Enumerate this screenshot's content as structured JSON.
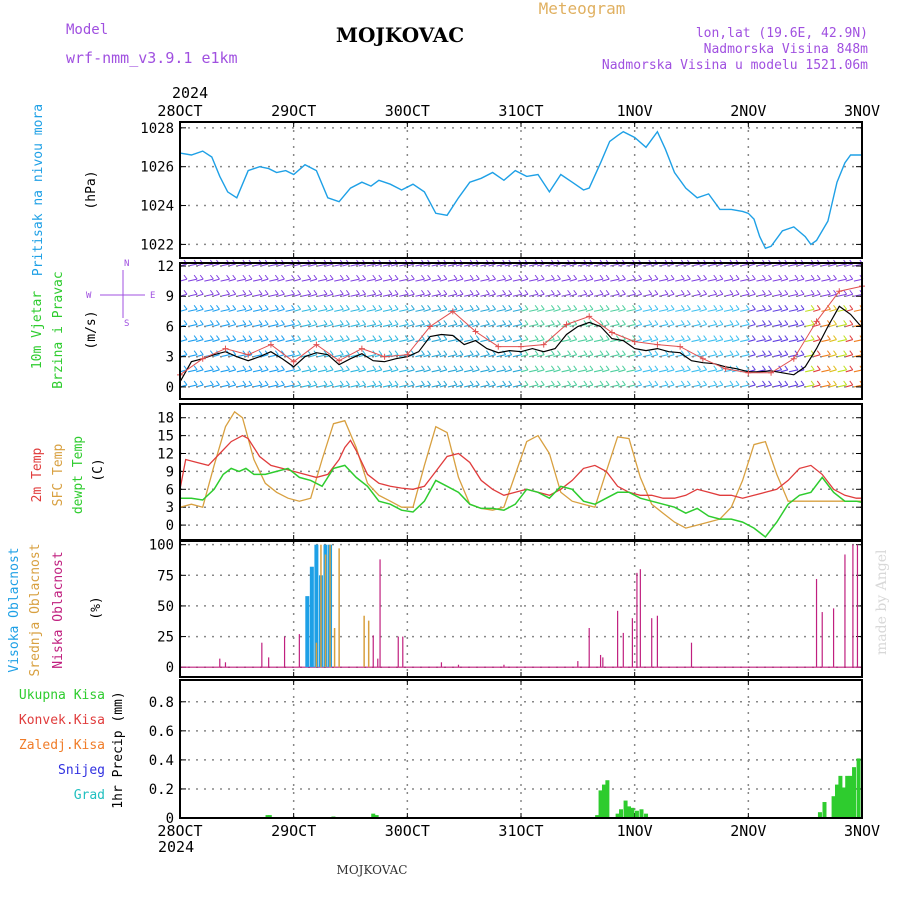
{
  "header": {
    "model_label": "Model",
    "model_name": "wrf-nmm_v3.9.1 e1km",
    "station": "MOJKOVAC",
    "product": "Meteogram",
    "lonlat": "lon,lat (19.6E, 42.9N)",
    "altitude": "Nadmorska Visina 848m",
    "model_altitude": "Nadmorska Visina u modelu 1521.06m",
    "year_top": "2024",
    "year_bottom": "2024",
    "footer_station": "MOJKOVAC",
    "credit": "made by Angel"
  },
  "colors": {
    "pressure": "#1ea0e6",
    "temp2m": "#e03c3c",
    "sfc_temp": "#d8a040",
    "dewpoint": "#2ecc2e",
    "cloud_high": "#1ea0e6",
    "cloud_mid": "#d8a040",
    "cloud_low": "#c0207f",
    "precip_total": "#2ecc2e",
    "precip_conv": "#e03c3c",
    "precip_freezing": "#f07c28",
    "precip_snow": "#3030e0",
    "precip_hail": "#20c0c0",
    "wind_label": "#2ecc2e",
    "wind_sub": "#2ecc2e",
    "header_purple": "#a050e0",
    "header_gold": "#e0b060"
  },
  "chart_data": [
    {
      "type": "line",
      "title": "",
      "ylabel": "(hPa)",
      "series_label": "Pritisak na nivou mora",
      "x_categories": [
        "28OCT",
        "29OCT",
        "30OCT",
        "31OCT",
        "1NOV",
        "2NOV",
        "3NOV"
      ],
      "yticks": [
        "1022",
        "1024",
        "1026",
        "1028"
      ],
      "ylim": [
        1021.3,
        1028.3
      ],
      "series": [
        {
          "name": "Pritisak na nivou mora",
          "x": [
            0,
            0.1,
            0.2,
            0.28,
            0.35,
            0.42,
            0.5,
            0.6,
            0.7,
            0.78,
            0.85,
            0.93,
            1.0,
            1.1,
            1.2,
            1.3,
            1.4,
            1.5,
            1.6,
            1.68,
            1.75,
            1.85,
            1.95,
            2.05,
            2.15,
            2.25,
            2.35,
            2.45,
            2.55,
            2.65,
            2.75,
            2.85,
            2.95,
            3.05,
            3.15,
            3.25,
            3.35,
            3.45,
            3.55,
            3.6,
            3.7,
            3.78,
            3.85,
            3.9,
            4.0,
            4.1,
            4.2,
            4.27,
            4.35,
            4.45,
            4.55,
            4.65,
            4.75,
            4.85,
            4.95,
            5.0,
            5.05,
            5.1,
            5.15,
            5.2,
            5.3,
            5.4,
            5.5,
            5.55,
            5.6,
            5.7,
            5.78,
            5.85,
            5.9,
            6.0
          ],
          "values": [
            1026.7,
            1026.6,
            1026.8,
            1026.5,
            1025.5,
            1024.7,
            1024.4,
            1025.8,
            1026.0,
            1025.9,
            1025.7,
            1025.8,
            1025.6,
            1026.1,
            1025.8,
            1024.4,
            1024.2,
            1024.9,
            1025.2,
            1025.0,
            1025.3,
            1025.1,
            1024.8,
            1025.1,
            1024.7,
            1023.6,
            1023.5,
            1024.4,
            1025.2,
            1025.4,
            1025.7,
            1025.3,
            1025.8,
            1025.5,
            1025.6,
            1024.7,
            1025.6,
            1025.2,
            1024.8,
            1024.9,
            1026.2,
            1027.3,
            1027.6,
            1027.8,
            1027.5,
            1027.0,
            1027.8,
            1026.9,
            1025.7,
            1024.9,
            1024.4,
            1024.6,
            1023.8,
            1023.8,
            1023.7,
            1023.6,
            1023.3,
            1022.4,
            1021.8,
            1021.9,
            1022.7,
            1022.9,
            1022.4,
            1022.0,
            1022.2,
            1023.2,
            1025.2,
            1026.2,
            1026.6,
            1026.6
          ]
        }
      ]
    },
    {
      "type": "line",
      "title": "",
      "ylabel": "(m/s)",
      "series_label_1": "10m Vjetar",
      "series_label_2": "Brzina i Pravac",
      "compass": {
        "n": "N",
        "s": "S",
        "w": "W",
        "e": "E"
      },
      "x_categories": [
        "28OCT",
        "29OCT",
        "30OCT",
        "31OCT",
        "1NOV",
        "2NOV",
        "3NOV"
      ],
      "yticks": [
        "0",
        "3",
        "6",
        "9",
        "12"
      ],
      "ylim": [
        -1.2,
        12.3
      ],
      "series": [
        {
          "name": "wind speed",
          "x": [
            0,
            0.1,
            0.2,
            0.3,
            0.4,
            0.5,
            0.6,
            0.7,
            0.8,
            0.9,
            1.0,
            1.1,
            1.2,
            1.3,
            1.4,
            1.5,
            1.6,
            1.7,
            1.8,
            1.9,
            2.0,
            2.1,
            2.2,
            2.3,
            2.4,
            2.5,
            2.6,
            2.7,
            2.8,
            2.9,
            3.0,
            3.1,
            3.2,
            3.3,
            3.4,
            3.5,
            3.6,
            3.7,
            3.8,
            3.9,
            4.0,
            4.1,
            4.2,
            4.3,
            4.4,
            4.5,
            4.6,
            4.7,
            4.8,
            4.9,
            5.0,
            5.1,
            5.2,
            5.3,
            5.4,
            5.5,
            5.6,
            5.7,
            5.8,
            5.9,
            6.0
          ],
          "values": [
            0.5,
            2.5,
            2.8,
            3.2,
            3.5,
            3.0,
            2.6,
            3.0,
            3.5,
            2.8,
            2.0,
            3.0,
            3.4,
            3.2,
            2.2,
            2.8,
            3.3,
            2.6,
            2.5,
            2.8,
            3.0,
            3.5,
            5.0,
            5.2,
            5.1,
            4.2,
            4.6,
            3.8,
            3.4,
            3.6,
            3.5,
            3.8,
            3.5,
            3.8,
            5.2,
            6.0,
            6.4,
            6.0,
            4.8,
            4.6,
            3.8,
            3.6,
            3.8,
            3.5,
            3.4,
            2.6,
            2.4,
            2.3,
            2.0,
            1.8,
            1.5,
            1.5,
            1.6,
            1.4,
            1.2,
            2.0,
            3.8,
            6.0,
            8.0,
            7.2,
            5.9
          ]
        },
        {
          "name": "gusts",
          "x": [
            0,
            0.2,
            0.4,
            0.6,
            0.8,
            1.0,
            1.2,
            1.4,
            1.6,
            1.8,
            2.0,
            2.2,
            2.4,
            2.6,
            2.8,
            3.0,
            3.2,
            3.4,
            3.6,
            3.8,
            4.0,
            4.2,
            4.4,
            4.6,
            4.8,
            5.0,
            5.2,
            5.4,
            5.6,
            5.8,
            6.0
          ],
          "values": [
            1.2,
            2.8,
            3.8,
            3.2,
            4.2,
            2.5,
            4.2,
            2.6,
            3.8,
            3.0,
            3.2,
            6.0,
            7.5,
            5.5,
            4.0,
            4.0,
            4.2,
            6.2,
            7.0,
            5.4,
            4.5,
            4.2,
            4.0,
            2.8,
            1.8,
            1.4,
            1.4,
            2.8,
            6.5,
            9.5,
            10.0
          ]
        }
      ]
    },
    {
      "type": "line",
      "title": "",
      "ylabel": "(C)",
      "series_labels": [
        "2m Temp",
        "SFC Temp",
        "dewpt Temp"
      ],
      "x_categories": [
        "28OCT",
        "29OCT",
        "30OCT",
        "31OCT",
        "1NOV",
        "2NOV",
        "3NOV"
      ],
      "yticks": [
        "0",
        "3",
        "6",
        "9",
        "12",
        "15",
        "18"
      ],
      "ylim": [
        -2.5,
        20.3
      ],
      "series": [
        {
          "name": "2m Temp",
          "x": [
            0,
            0.05,
            0.15,
            0.25,
            0.35,
            0.45,
            0.55,
            0.6,
            0.7,
            0.8,
            0.9,
            1.0,
            1.1,
            1.2,
            1.3,
            1.4,
            1.45,
            1.5,
            1.55,
            1.65,
            1.75,
            1.85,
            1.95,
            2.05,
            2.15,
            2.25,
            2.35,
            2.45,
            2.55,
            2.65,
            2.75,
            2.85,
            2.95,
            3.05,
            3.15,
            3.25,
            3.35,
            3.45,
            3.55,
            3.65,
            3.75,
            3.85,
            3.95,
            4.05,
            4.15,
            4.25,
            4.35,
            4.45,
            4.55,
            4.65,
            4.75,
            4.85,
            4.95,
            5.05,
            5.15,
            5.25,
            5.35,
            5.45,
            5.55,
            5.65,
            5.75,
            5.85,
            5.95,
            6.0
          ],
          "values": [
            6.0,
            11.0,
            10.5,
            10.0,
            12.0,
            14.0,
            15.0,
            14.5,
            11.5,
            10.0,
            9.5,
            9.0,
            8.5,
            8.0,
            8.5,
            11.0,
            13.0,
            14.2,
            12.5,
            8.5,
            7.0,
            6.5,
            6.2,
            6.0,
            6.5,
            9.0,
            11.5,
            12.0,
            10.5,
            7.5,
            6.0,
            5.0,
            5.5,
            6.0,
            5.5,
            5.0,
            6.0,
            7.5,
            9.5,
            10.0,
            9.0,
            6.5,
            5.5,
            5.0,
            5.0,
            4.5,
            4.5,
            5.0,
            6.0,
            5.5,
            5.0,
            5.0,
            4.5,
            5.0,
            5.5,
            6.0,
            7.5,
            9.5,
            10.0,
            8.5,
            6.0,
            5.0,
            4.5,
            4.5
          ]
        },
        {
          "name": "SFC Temp",
          "x": [
            0,
            0.1,
            0.2,
            0.3,
            0.4,
            0.48,
            0.55,
            0.65,
            0.75,
            0.85,
            0.95,
            1.05,
            1.15,
            1.25,
            1.35,
            1.45,
            1.55,
            1.65,
            1.75,
            1.85,
            1.95,
            2.05,
            2.15,
            2.25,
            2.35,
            2.45,
            2.55,
            2.65,
            2.75,
            2.85,
            2.95,
            3.05,
            3.15,
            3.25,
            3.35,
            3.45,
            3.55,
            3.65,
            3.75,
            3.85,
            3.95,
            4.05,
            4.15,
            4.25,
            4.35,
            4.45,
            4.55,
            4.65,
            4.75,
            4.85,
            4.95,
            5.05,
            5.15,
            5.25,
            5.35,
            5.45,
            5.55,
            5.65,
            5.75,
            5.85,
            5.95,
            6.0
          ],
          "values": [
            3.0,
            3.5,
            3.0,
            10.0,
            16.5,
            19.0,
            18.0,
            11.0,
            7.0,
            5.5,
            4.5,
            4.0,
            4.5,
            11.0,
            17.0,
            17.5,
            13.0,
            7.0,
            5.0,
            4.0,
            3.0,
            3.0,
            10.0,
            16.5,
            15.5,
            8.0,
            3.5,
            2.8,
            2.5,
            3.0,
            8.5,
            14.0,
            15.0,
            12.0,
            5.5,
            4.0,
            3.5,
            3.0,
            9.0,
            14.8,
            14.5,
            8.0,
            3.5,
            2.0,
            0.5,
            -0.5,
            0.0,
            0.5,
            1.0,
            3.0,
            7.5,
            13.5,
            14.0,
            8.5,
            4.0,
            4.0,
            4.0,
            4.0,
            4.0,
            4.0,
            4.0,
            4.0
          ]
        },
        {
          "name": "dewpt Temp",
          "x": [
            0,
            0.1,
            0.2,
            0.3,
            0.38,
            0.45,
            0.52,
            0.58,
            0.65,
            0.75,
            0.85,
            0.95,
            1.05,
            1.15,
            1.25,
            1.35,
            1.45,
            1.55,
            1.65,
            1.75,
            1.85,
            1.95,
            2.05,
            2.15,
            2.25,
            2.35,
            2.45,
            2.55,
            2.65,
            2.75,
            2.85,
            2.95,
            3.05,
            3.15,
            3.25,
            3.35,
            3.45,
            3.55,
            3.65,
            3.75,
            3.85,
            3.95,
            4.05,
            4.15,
            4.25,
            4.35,
            4.45,
            4.55,
            4.65,
            4.75,
            4.85,
            4.95,
            5.05,
            5.15,
            5.25,
            5.35,
            5.45,
            5.55,
            5.65,
            5.75,
            5.85,
            5.95,
            6.0
          ],
          "values": [
            4.5,
            4.5,
            4.2,
            6.0,
            8.5,
            9.5,
            9.0,
            9.5,
            8.5,
            8.5,
            9.0,
            9.5,
            8.0,
            7.5,
            6.5,
            9.5,
            10.0,
            8.0,
            6.5,
            4.0,
            3.5,
            2.5,
            2.2,
            4.0,
            7.5,
            6.5,
            5.5,
            3.5,
            2.8,
            2.8,
            2.5,
            3.5,
            6.0,
            5.5,
            4.5,
            6.5,
            6.0,
            4.0,
            3.5,
            4.5,
            5.5,
            5.5,
            4.5,
            4.0,
            3.5,
            3.0,
            2.0,
            2.8,
            1.5,
            1.0,
            1.0,
            0.5,
            -0.5,
            -2.0,
            0.5,
            3.5,
            5.0,
            5.5,
            8.0,
            5.5,
            4.0,
            4.0,
            3.8
          ]
        }
      ]
    },
    {
      "type": "bar",
      "title": "",
      "ylabel": "(%)",
      "series_labels": [
        "Visoka Oblacnost",
        "Srednja Oblacnost",
        "Niska Oblacnost"
      ],
      "x_categories": [
        "28OCT",
        "29OCT",
        "30OCT",
        "31OCT",
        "1NOV",
        "2NOV",
        "3NOV"
      ],
      "yticks": [
        "0",
        "25",
        "50",
        "75",
        "100"
      ],
      "ylim": [
        -8,
        103
      ],
      "series": [
        {
          "name": "Visoka Oblacnost",
          "x": [
            1.12,
            1.16,
            1.2,
            1.24,
            1.28,
            1.32
          ],
          "values": [
            58,
            82,
            100,
            75,
            100,
            100
          ]
        },
        {
          "name": "Srednja Oblacnost",
          "x": [
            1.2,
            1.24,
            1.28,
            1.32,
            1.36,
            1.4,
            1.62,
            1.66
          ],
          "values": [
            20,
            100,
            92,
            100,
            32,
            97,
            42,
            38
          ]
        },
        {
          "name": "Niska Oblacnost",
          "x": [
            0.35,
            0.4,
            0.72,
            0.78,
            0.92,
            1.05,
            1.7,
            1.74,
            1.76,
            1.92,
            1.96,
            2.3,
            2.45,
            2.85,
            3.5,
            3.6,
            3.7,
            3.72,
            3.85,
            3.9,
            3.98,
            4.02,
            4.05,
            4.15,
            4.2,
            4.5,
            5.6,
            5.65,
            5.75,
            5.85,
            5.92,
            5.96
          ],
          "values": [
            7,
            4,
            20,
            8,
            25,
            27,
            26,
            7,
            88,
            25,
            25,
            4,
            2,
            2,
            5,
            32,
            10,
            8,
            46,
            28,
            40,
            77,
            80,
            40,
            42,
            20,
            72,
            45,
            48,
            92,
            100,
            100
          ]
        }
      ]
    },
    {
      "type": "bar",
      "title": "",
      "ylabel": "1hr Precip (mm)",
      "series_labels": [
        "Ukupna Kisa",
        "Konvek.Kisa",
        "Zaledj.Kisa",
        "Snijeg",
        "Grad"
      ],
      "x_categories": [
        "28OCT",
        "29OCT",
        "30OCT",
        "31OCT",
        "1NOV",
        "2NOV",
        "3NOV"
      ],
      "yticks": [
        "0",
        "0.2",
        "0.4",
        "0.6",
        "0.8"
      ],
      "ylim": [
        0,
        0.95
      ],
      "series": [
        {
          "name": "Ukupna Kisa",
          "x": [
            0.77,
            0.79,
            1.35,
            1.7,
            1.73,
            3.67,
            3.7,
            3.73,
            3.76,
            3.85,
            3.88,
            3.92,
            3.95,
            3.98,
            4.02,
            4.06,
            4.1,
            5.63,
            5.67,
            5.75,
            5.78,
            5.81,
            5.84,
            5.87,
            5.9,
            5.93,
            5.97
          ],
          "values": [
            0.02,
            0.02,
            0.01,
            0.03,
            0.02,
            0.02,
            0.19,
            0.23,
            0.26,
            0.03,
            0.06,
            0.12,
            0.08,
            0.07,
            0.05,
            0.06,
            0.03,
            0.04,
            0.11,
            0.15,
            0.23,
            0.29,
            0.21,
            0.29,
            0.29,
            0.35,
            0.41
          ]
        }
      ]
    }
  ]
}
